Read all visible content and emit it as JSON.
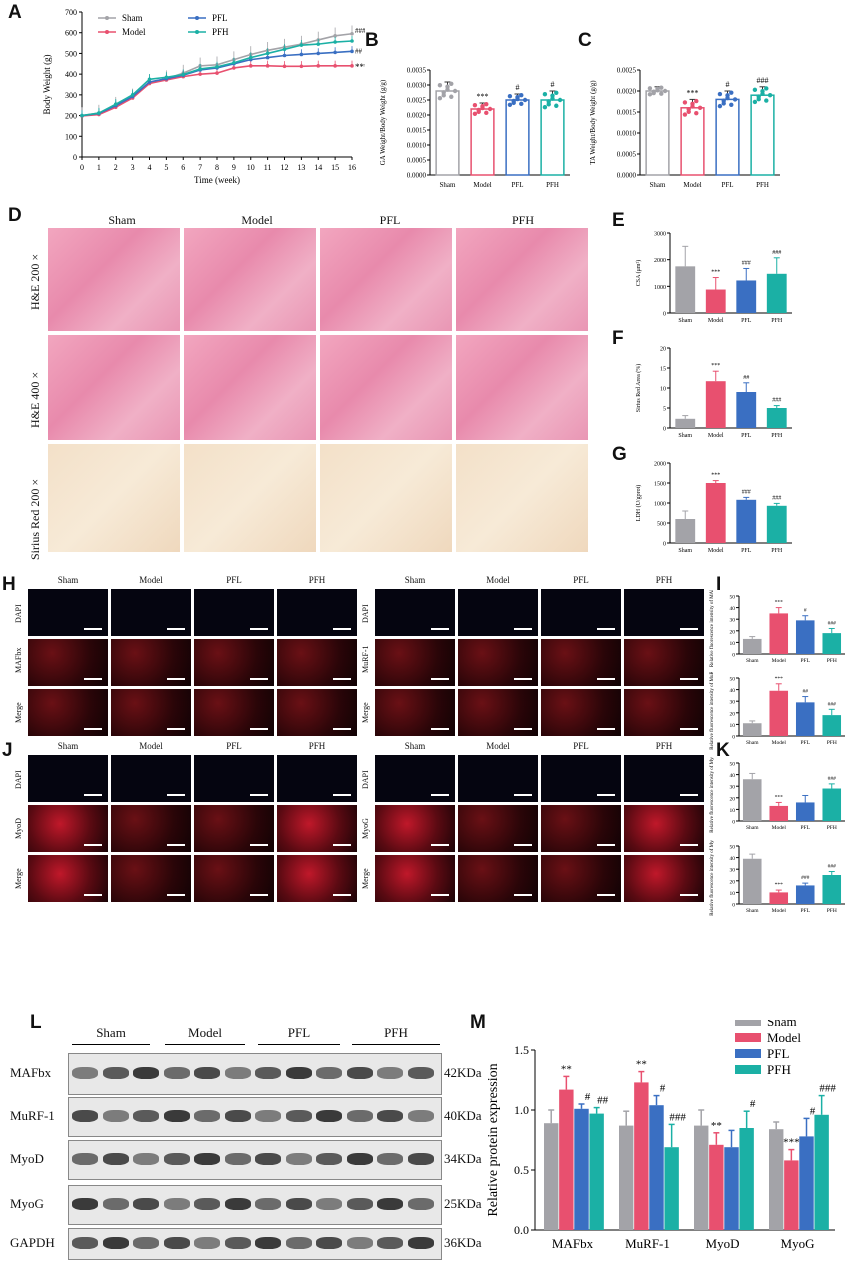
{
  "panels": {
    "A": "A",
    "B": "B",
    "C": "C",
    "D": "D",
    "E": "E",
    "F": "F",
    "G": "G",
    "H": "H",
    "I": "I",
    "J": "J",
    "K": "K",
    "L": "L",
    "M": "M"
  },
  "groups": [
    "Sham",
    "Model",
    "PFL",
    "PFH"
  ],
  "colors": {
    "Sham": "#a3a3a8",
    "Model": "#e8506f",
    "PFL": "#3a6fc2",
    "PFH": "#1bb0a5"
  },
  "chart_data": [
    {
      "id": "A",
      "type": "line",
      "xlabel": "Time (week)",
      "ylabel": "Body Weight (g)",
      "xlim": [
        0,
        16
      ],
      "ylim": [
        0,
        700
      ],
      "xticks": [
        "0",
        "1",
        "2",
        "3",
        "4",
        "5",
        "6",
        "7",
        "8",
        "9",
        "10",
        "11",
        "12",
        "13",
        "14",
        "15",
        "16"
      ],
      "yticks": [
        "0",
        "100",
        "200",
        "300",
        "400",
        "500",
        "600",
        "700"
      ],
      "x": [
        0,
        1,
        2,
        3,
        4,
        5,
        6,
        7,
        8,
        9,
        10,
        11,
        12,
        13,
        14,
        15,
        16
      ],
      "series": [
        {
          "name": "Sham",
          "values": [
            200,
            212,
            250,
            290,
            360,
            378,
            405,
            440,
            445,
            470,
            495,
            515,
            530,
            545,
            565,
            585,
            595
          ]
        },
        {
          "name": "Model",
          "values": [
            198,
            205,
            240,
            285,
            355,
            372,
            388,
            400,
            405,
            430,
            440,
            440,
            438,
            438,
            440,
            440,
            440
          ]
        },
        {
          "name": "PFL",
          "values": [
            200,
            210,
            248,
            292,
            362,
            378,
            395,
            420,
            430,
            450,
            470,
            480,
            490,
            495,
            500,
            505,
            510
          ]
        },
        {
          "name": "PFH",
          "values": [
            200,
            212,
            255,
            300,
            375,
            385,
            398,
            425,
            435,
            455,
            480,
            500,
            520,
            540,
            545,
            555,
            560
          ]
        }
      ],
      "annotations": [
        "###",
        "##",
        "***"
      ],
      "legend": "top-left"
    },
    {
      "id": "B",
      "type": "bar",
      "ylabel": "GA Weight/Body Weight (g/g)",
      "categories": [
        "Sham",
        "Model",
        "PFL",
        "PFH"
      ],
      "values": [
        0.0028,
        0.0022,
        0.0025,
        0.0025
      ],
      "errors": [
        0.0003,
        0.0002,
        0.0002,
        0.0003
      ],
      "ylim": [
        0,
        0.0035
      ],
      "yticks": [
        "0.0000",
        "0.0005",
        "0.0010",
        "0.0015",
        "0.0020",
        "0.0025",
        "0.0030",
        "0.0035"
      ],
      "marks": [
        "",
        "***",
        "#",
        "#"
      ]
    },
    {
      "id": "C",
      "type": "bar",
      "ylabel": "TA Weight/Body Weight (g/g)",
      "categories": [
        "Sham",
        "Model",
        "PFL",
        "PFH"
      ],
      "values": [
        0.002,
        0.0016,
        0.0018,
        0.0019
      ],
      "errors": [
        0.0001,
        0.0002,
        0.0002,
        0.0002
      ],
      "ylim": [
        0,
        0.0025
      ],
      "yticks": [
        "0.0000",
        "0.0005",
        "0.0010",
        "0.0015",
        "0.0020",
        "0.0025"
      ],
      "marks": [
        "",
        "***",
        "#",
        "###"
      ]
    },
    {
      "id": "E",
      "type": "bar",
      "ylabel": "CSA (μm²)",
      "categories": [
        "Sham",
        "Model",
        "PFL",
        "PFH"
      ],
      "values": [
        1750,
        880,
        1220,
        1470
      ],
      "errors": [
        750,
        450,
        450,
        600
      ],
      "ylim": [
        0,
        3000
      ],
      "yticks": [
        "0",
        "1000",
        "2000",
        "3000"
      ],
      "marks": [
        "",
        "***",
        "###",
        "###"
      ]
    },
    {
      "id": "F",
      "type": "bar",
      "ylabel": "Sirius Red Area (%)",
      "categories": [
        "Sham",
        "Model",
        "PFL",
        "PFH"
      ],
      "values": [
        2.3,
        11.7,
        9.0,
        5.0
      ],
      "errors": [
        0.8,
        2.5,
        2.3,
        0.6
      ],
      "ylim": [
        0,
        20
      ],
      "yticks": [
        "0",
        "5",
        "10",
        "15",
        "20"
      ],
      "marks": [
        "",
        "***",
        "##",
        "###"
      ]
    },
    {
      "id": "G",
      "type": "bar",
      "ylabel": "LDH (U/gprot)",
      "categories": [
        "Sham",
        "Model",
        "PFL",
        "PFH"
      ],
      "values": [
        600,
        1500,
        1080,
        930
      ],
      "errors": [
        200,
        60,
        60,
        60
      ],
      "ylim": [
        0,
        2000
      ],
      "yticks": [
        "0",
        "500",
        "1000",
        "1500",
        "2000"
      ],
      "marks": [
        "",
        "***",
        "###",
        "###"
      ]
    },
    {
      "id": "I1",
      "type": "bar",
      "ylabel": "Relative fluorescence intensity of MAFbx",
      "categories": [
        "Sham",
        "Model",
        "PFL",
        "PFH"
      ],
      "values": [
        13,
        35,
        29,
        18
      ],
      "errors": [
        2,
        5,
        4,
        4
      ],
      "ylim": [
        0,
        50
      ],
      "yticks": [
        "0",
        "10",
        "20",
        "30",
        "40",
        "50"
      ],
      "marks": [
        "",
        "***",
        "#",
        "###"
      ]
    },
    {
      "id": "I2",
      "type": "bar",
      "ylabel": "Relative fluorescence intensity of MuRF-1",
      "categories": [
        "Sham",
        "Model",
        "PFL",
        "PFH"
      ],
      "values": [
        11,
        39,
        29,
        18
      ],
      "errors": [
        2,
        6,
        5,
        5
      ],
      "ylim": [
        0,
        50
      ],
      "yticks": [
        "0",
        "10",
        "20",
        "30",
        "40",
        "50"
      ],
      "marks": [
        "",
        "***",
        "##",
        "###"
      ]
    },
    {
      "id": "K1",
      "type": "bar",
      "ylabel": "Relative fluorescence intensity of MyoD",
      "categories": [
        "Sham",
        "Model",
        "PFL",
        "PFH"
      ],
      "values": [
        36,
        13,
        16,
        28
      ],
      "errors": [
        5,
        3,
        6,
        4
      ],
      "ylim": [
        0,
        50
      ],
      "yticks": [
        "0",
        "10",
        "20",
        "30",
        "40",
        "50"
      ],
      "marks": [
        "",
        "***",
        "",
        "###"
      ]
    },
    {
      "id": "K2",
      "type": "bar",
      "ylabel": "Relative fluorescence intensity of MyoG",
      "categories": [
        "Sham",
        "Model",
        "PFL",
        "PFH"
      ],
      "values": [
        39,
        10,
        16,
        25
      ],
      "errors": [
        4,
        2,
        2,
        3
      ],
      "ylim": [
        0,
        50
      ],
      "yticks": [
        "0",
        "10",
        "20",
        "30",
        "40",
        "50"
      ],
      "marks": [
        "",
        "***",
        "###",
        "###"
      ]
    },
    {
      "id": "M",
      "type": "bar",
      "ylabel": "Relative protein expression",
      "categories": [
        "MAFbx",
        "MuRF-1",
        "MyoD",
        "MyoG"
      ],
      "ylim": [
        0,
        1.5
      ],
      "yticks": [
        "0.0",
        "0.5",
        "1.0",
        "1.5"
      ],
      "series": [
        {
          "name": "Sham",
          "values": [
            0.89,
            0.87,
            0.87,
            0.84
          ],
          "errors": [
            0.11,
            0.12,
            0.13,
            0.06
          ]
        },
        {
          "name": "Model",
          "values": [
            1.17,
            1.23,
            0.71,
            0.58
          ],
          "errors": [
            0.11,
            0.09,
            0.1,
            0.09
          ]
        },
        {
          "name": "PFL",
          "values": [
            1.01,
            1.04,
            0.69,
            0.78
          ],
          "errors": [
            0.04,
            0.08,
            0.14,
            0.15
          ]
        },
        {
          "name": "PFH",
          "values": [
            0.97,
            0.69,
            0.85,
            0.96
          ],
          "errors": [
            0.05,
            0.19,
            0.14,
            0.16
          ]
        }
      ],
      "marks": [
        [
          "",
          "**",
          "#",
          "##"
        ],
        [
          "",
          "**",
          "#",
          "###"
        ],
        [
          "",
          "**",
          "",
          "#"
        ],
        [
          "",
          "***",
          "#",
          "###"
        ]
      ],
      "legend": "top-right"
    }
  ],
  "D": {
    "cols": [
      "Sham",
      "Model",
      "PFL",
      "PFH"
    ],
    "rows": [
      "H&E  200 ×",
      "H&E  400 ×",
      "Sirius  Red 200 ×"
    ]
  },
  "H": {
    "cols": [
      "Sham",
      "Model",
      "PFL",
      "PFH"
    ],
    "rows_left": [
      "DAPI",
      "MAFbx",
      "Merge"
    ],
    "rows_right": [
      "DAPI",
      "MuRF-1",
      "Merge"
    ]
  },
  "J": {
    "cols": [
      "Sham",
      "Model",
      "PFL",
      "PFH"
    ],
    "rows_left": [
      "DAPI",
      "MyoD",
      "Merge"
    ],
    "rows_right": [
      "DAPI",
      "MyoG",
      "Merge"
    ]
  },
  "L": {
    "groups": [
      "Sham",
      "Model",
      "PFL",
      "PFH"
    ],
    "proteins": [
      "MAFbx",
      "MuRF-1",
      "MyoD",
      "MyoG",
      "GAPDH"
    ],
    "sizes": [
      "42KDa",
      "40KDa",
      "34KDa",
      "25KDa",
      "36KDa"
    ]
  }
}
